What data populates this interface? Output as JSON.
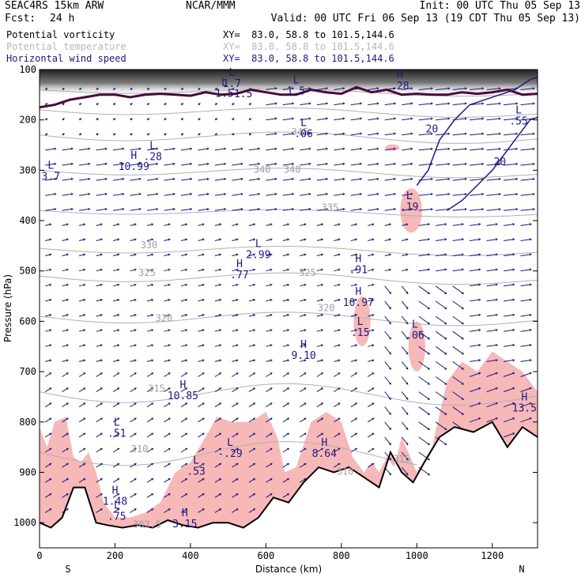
{
  "header": {
    "model": "SEAC4RS 15km ARW",
    "center": "NCAR/MMM",
    "init": "Init: 00 UTC Thu 05 Sep 13",
    "fcst_label": "Fcst:",
    "fcst_value": "24 h",
    "valid": "Valid: 00 UTC Fri 06 Sep 13 (19 CDT Thu 05 Sep 13)"
  },
  "legend": [
    {
      "name": "Potential vorticity",
      "xy": "XY=  83.0, 58.8 to 101.5,144.6",
      "color": "#000000"
    },
    {
      "name": "Potential temperature",
      "xy": "XY=  83.0, 58.8 to 101.5,144.6",
      "color": "#b8b8b8"
    },
    {
      "name": "Horizontal wind speed",
      "xy": "XY=  83.0, 58.8 to 101.5,144.6",
      "color": "#1a1a80"
    }
  ],
  "chart_data": {
    "type": "cross-section",
    "xlabel": "Distance (km)",
    "ylabel": "Pressure (hPa)",
    "xlim": [
      0,
      1320
    ],
    "ylim": [
      1050,
      100
    ],
    "x_ticks": [
      "0",
      "200",
      "400",
      "600",
      "800",
      "1000",
      "1200"
    ],
    "y_ticks": [
      "100",
      "200",
      "300",
      "400",
      "500",
      "600",
      "700",
      "800",
      "900",
      "1000"
    ],
    "x_end_labels": {
      "left": "S",
      "right": "N"
    },
    "colors": {
      "pv_fill": "#f7b8b8",
      "theta": "#b0b0b0",
      "wind": "#1a1a80",
      "pv_line": "#4a0a3a",
      "terrain": "#000000"
    },
    "theta_labels": [
      {
        "text": "340",
        "x": 670,
        "p": 305
      },
      {
        "text": "335",
        "x": 770,
        "p": 380
      },
      {
        "text": "330",
        "x": 290,
        "p": 455
      },
      {
        "text": "325",
        "x": 285,
        "p": 510
      },
      {
        "text": "320",
        "x": 330,
        "p": 600
      },
      {
        "text": "315",
        "x": 310,
        "p": 740
      },
      {
        "text": "310",
        "x": 265,
        "p": 860
      },
      {
        "text": "315",
        "x": 960,
        "p": 880
      },
      {
        "text": "310",
        "x": 810,
        "p": 905
      },
      {
        "text": "302.5",
        "x": 285,
        "p": 1010
      },
      {
        "text": "340",
        "x": 590,
        "p": 305
      },
      {
        "text": "345",
        "x": 690,
        "p": 230
      },
      {
        "text": "320",
        "x": 760,
        "p": 580
      },
      {
        "text": "325",
        "x": 710,
        "p": 510
      }
    ],
    "extrema": [
      {
        "type": "L",
        "value": "3.7",
        "x": 30,
        "p": 310
      },
      {
        "type": "L",
        "value": ".28",
        "x": 300,
        "p": 270
      },
      {
        "type": "H",
        "value": "10.99",
        "x": 250,
        "p": 290
      },
      {
        "type": "L",
        "value": ".06",
        "x": 700,
        "p": 225
      },
      {
        "type": "L",
        "value": "2.99",
        "x": 580,
        "p": 465
      },
      {
        "type": "H",
        "value": ".77",
        "x": 530,
        "p": 505
      },
      {
        "type": "H",
        "value": ".91",
        "x": 845,
        "p": 495
      },
      {
        "type": "L",
        "value": ".19",
        "x": 980,
        "p": 370
      },
      {
        "type": "H",
        "value": "10.97",
        "x": 845,
        "p": 560
      },
      {
        "type": "L",
        "value": ".15",
        "x": 850,
        "p": 620
      },
      {
        "type": "L",
        "value": ".06",
        "x": 995,
        "p": 625
      },
      {
        "type": "H",
        "value": "9.10",
        "x": 700,
        "p": 665
      },
      {
        "type": "H",
        "value": "10.85",
        "x": 380,
        "p": 745
      },
      {
        "type": "L",
        "value": ".51",
        "x": 205,
        "p": 820
      },
      {
        "type": "L",
        "value": "-.29",
        "x": 505,
        "p": 860
      },
      {
        "type": "H",
        "value": "8.64",
        "x": 755,
        "p": 860
      },
      {
        "type": "L",
        "value": ".53",
        "x": 415,
        "p": 895
      },
      {
        "type": "H",
        "value": "1.48",
        "x": 200,
        "p": 955
      },
      {
        "type": "L",
        "value": ".75",
        "x": 205,
        "p": 985
      },
      {
        "type": "H",
        "value": "3.15",
        "x": 385,
        "p": 1000
      },
      {
        "type": "H",
        "value": "13.5",
        "x": 1285,
        "p": 770
      },
      {
        "type": "L",
        "value": ".55",
        "x": 1270,
        "p": 200
      },
      {
        "type": "H",
        "value": ".28",
        "x": 955,
        "p": 130
      },
      {
        "type": "L",
        "value": "1.5",
        "x": 490,
        "p": 145
      },
      {
        "type": "L",
        "value": "1.7",
        "x": 510,
        "p": 125
      },
      {
        "type": "L",
        "value": "1.5",
        "x": 680,
        "p": 140
      }
    ],
    "wind_labels": [
      {
        "text": "20",
        "x": 1040,
        "p": 225
      },
      {
        "text": "20",
        "x": 1220,
        "p": 290
      }
    ],
    "pv_line_label": {
      "text": "1.5",
      "x": 540,
      "p": 155
    },
    "terrain": [
      [
        0,
        1000
      ],
      [
        30,
        1010
      ],
      [
        60,
        990
      ],
      [
        90,
        930
      ],
      [
        120,
        930
      ],
      [
        150,
        1000
      ],
      [
        180,
        1005
      ],
      [
        220,
        1010
      ],
      [
        260,
        1005
      ],
      [
        300,
        1010
      ],
      [
        340,
        995
      ],
      [
        380,
        1005
      ],
      [
        420,
        1010
      ],
      [
        460,
        1000
      ],
      [
        500,
        1000
      ],
      [
        540,
        1010
      ],
      [
        580,
        990
      ],
      [
        620,
        950
      ],
      [
        660,
        960
      ],
      [
        700,
        920
      ],
      [
        740,
        890
      ],
      [
        780,
        900
      ],
      [
        820,
        890
      ],
      [
        860,
        910
      ],
      [
        900,
        930
      ],
      [
        930,
        860
      ],
      [
        960,
        900
      ],
      [
        990,
        920
      ],
      [
        1020,
        880
      ],
      [
        1060,
        830
      ],
      [
        1100,
        810
      ],
      [
        1150,
        820
      ],
      [
        1200,
        800
      ],
      [
        1240,
        850
      ],
      [
        1280,
        810
      ],
      [
        1320,
        830
      ]
    ]
  }
}
